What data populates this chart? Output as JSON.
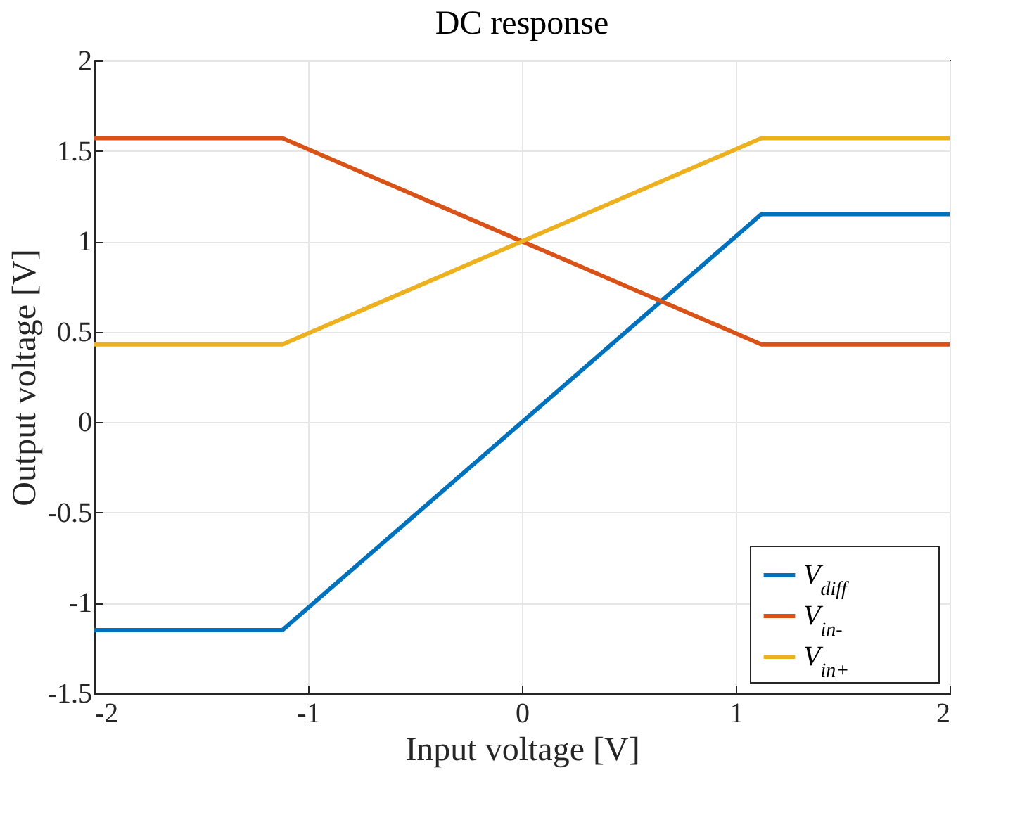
{
  "chart_data": {
    "type": "line",
    "title": "DC response",
    "xlabel": "Input voltage [V]",
    "ylabel": "Output voltage [V]",
    "xlim": [
      -2,
      2
    ],
    "ylim": [
      -1.5,
      2
    ],
    "xticks": [
      -2,
      -1,
      0,
      1,
      2
    ],
    "yticks": [
      -1.5,
      -1,
      -0.5,
      0,
      0.5,
      1,
      1.5,
      2
    ],
    "x": [
      -2,
      -1.12,
      1.12,
      2
    ],
    "series": [
      {
        "name": "V$_{diff}$",
        "color": "#0072bd",
        "values": [
          -1.15,
          -1.15,
          1.15,
          1.15
        ]
      },
      {
        "name": "V$_{in-}$",
        "color": "#d95319",
        "values": [
          1.57,
          1.57,
          0.43,
          0.43
        ]
      },
      {
        "name": "V$_{in+}$",
        "color": "#edb120",
        "values": [
          0.43,
          0.43,
          1.57,
          1.57
        ]
      }
    ],
    "grid": true,
    "legend": "bottom right",
    "line_style": "solid",
    "marker": "none"
  }
}
